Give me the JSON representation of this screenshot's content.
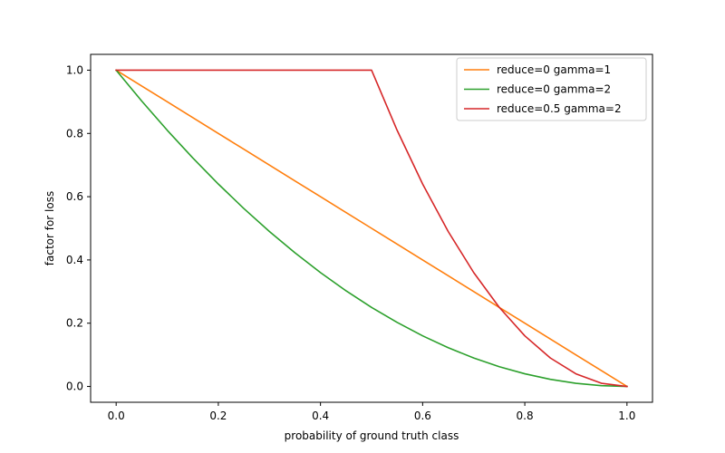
{
  "chart_data": {
    "type": "line",
    "title": "",
    "xlabel": "probability of ground truth class",
    "ylabel": "factor for loss",
    "xlim": [
      -0.05,
      1.05
    ],
    "ylim": [
      -0.05,
      1.05
    ],
    "xticks": [
      0.0,
      0.2,
      0.4,
      0.6,
      0.8,
      1.0
    ],
    "yticks": [
      0.0,
      0.2,
      0.4,
      0.6,
      0.8,
      1.0
    ],
    "xtick_labels": [
      "0.0",
      "0.2",
      "0.4",
      "0.6",
      "0.8",
      "1.0"
    ],
    "ytick_labels": [
      "0.0",
      "0.2",
      "0.4",
      "0.6",
      "0.8",
      "1.0"
    ],
    "grid": false,
    "legend_position": "top-right",
    "x": [
      0.0,
      0.05,
      0.1,
      0.15,
      0.2,
      0.25,
      0.3,
      0.35,
      0.4,
      0.45,
      0.5,
      0.55,
      0.6,
      0.65,
      0.7,
      0.75,
      0.8,
      0.85,
      0.9,
      0.95,
      1.0
    ],
    "series": [
      {
        "name": "reduce=0 gamma=1",
        "color": "#ff7f0e",
        "values": [
          1.0,
          0.95,
          0.9,
          0.85,
          0.8,
          0.75,
          0.7,
          0.65,
          0.6,
          0.55,
          0.5,
          0.45,
          0.4,
          0.35,
          0.3,
          0.25,
          0.2,
          0.15,
          0.1,
          0.05,
          0.0
        ]
      },
      {
        "name": "reduce=0 gamma=2",
        "color": "#2ca02c",
        "values": [
          1.0,
          0.9025,
          0.81,
          0.7225,
          0.64,
          0.5625,
          0.49,
          0.4225,
          0.36,
          0.3025,
          0.25,
          0.2025,
          0.16,
          0.1225,
          0.09,
          0.0625,
          0.04,
          0.0225,
          0.01,
          0.0025,
          0.0
        ]
      },
      {
        "name": "reduce=0.5 gamma=2",
        "color": "#d62728",
        "values": [
          1.0,
          1.0,
          1.0,
          1.0,
          1.0,
          1.0,
          1.0,
          1.0,
          1.0,
          1.0,
          1.0,
          0.81,
          0.64,
          0.49,
          0.36,
          0.25,
          0.16,
          0.09,
          0.04,
          0.01,
          0.0
        ]
      }
    ]
  }
}
